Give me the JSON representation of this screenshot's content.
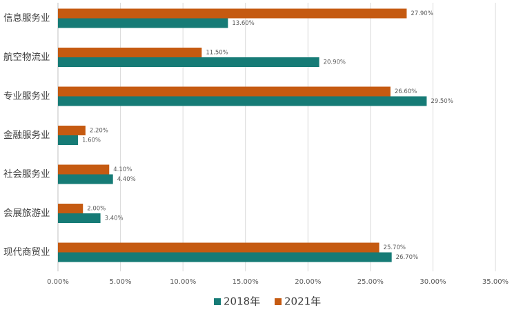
{
  "chart_data": {
    "type": "bar",
    "orientation": "horizontal",
    "title": "",
    "xlabel": "",
    "ylabel": "",
    "categories": [
      "信息服务业",
      "航空物流业",
      "专业服务业",
      "金融服务业",
      "社会服务业",
      "会展旅游业",
      "现代商贸业"
    ],
    "series": [
      {
        "name": "2021年",
        "color": "#C55A11",
        "values": [
          27.9,
          11.5,
          26.6,
          2.2,
          4.1,
          2.0,
          25.7
        ],
        "labels": [
          "27.90%",
          "11.50%",
          "26.60%",
          "2.20%",
          "4.10%",
          "2.00%",
          "25.70%"
        ]
      },
      {
        "name": "2018年",
        "color": "#167B76",
        "values": [
          13.6,
          20.9,
          29.5,
          1.6,
          4.4,
          3.4,
          26.7
        ],
        "labels": [
          "13.60%",
          "20.90%",
          "29.50%",
          "1.60%",
          "4.40%",
          "3.40%",
          "26.70%"
        ]
      }
    ],
    "xlim": [
      0,
      35
    ],
    "ticks": [
      0,
      5,
      10,
      15,
      20,
      25,
      30,
      35
    ],
    "tick_labels": [
      "0.00%",
      "5.00%",
      "10.00%",
      "15.00%",
      "20.00%",
      "25.00%",
      "30.00%",
      "35.00%"
    ],
    "legend": {
      "position": "bottom",
      "entries": [
        "2018年",
        "2021年"
      ]
    },
    "grid": true
  }
}
